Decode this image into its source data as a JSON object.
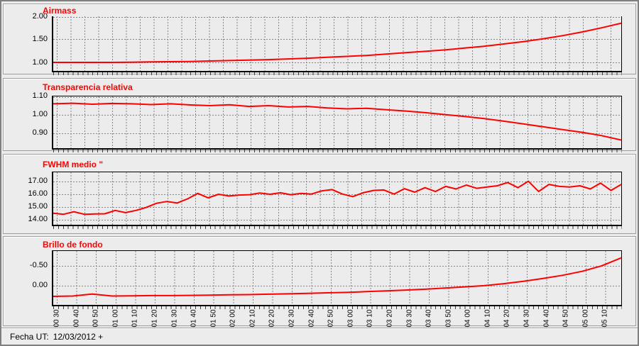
{
  "colors": {
    "accent_red": "#ff0000",
    "background": "#ececec",
    "grid": "#858585",
    "axis": "#000000"
  },
  "status_bar": {
    "label": "Fecha UT:",
    "value": "12/03/2012 +"
  },
  "x_axis": {
    "tick_labels": [
      "00 30",
      "00 40",
      "00 50",
      "01 00",
      "01 10",
      "01 20",
      "01 30",
      "01 40",
      "01 50",
      "02 00",
      "02 10",
      "02 20",
      "02 30",
      "02 40",
      "02 50",
      "03 00",
      "03 10",
      "03 20",
      "03 30",
      "03 40",
      "03 50",
      "04 00",
      "04 10",
      "04 20",
      "04 30",
      "04 40",
      "04 50",
      "05 00",
      "05 10"
    ],
    "orientation": "rotated-90"
  },
  "chart_data": [
    {
      "type": "line",
      "title": "Airmass",
      "line_color": "#ff0000",
      "ylim": [
        0.815,
        2.0
      ],
      "grid": true,
      "legend": false,
      "y_ticks": [
        {
          "v": 2.0,
          "label": "2.00"
        },
        {
          "v": 1.5,
          "label": "1.50"
        },
        {
          "v": 1.0,
          "label": "1.00"
        }
      ],
      "x_range_labels": [
        "00 30",
        "05 10"
      ],
      "values": [
        1.0,
        1.0,
        1.0,
        1.0,
        1.005,
        1.01,
        1.015,
        1.02,
        1.03,
        1.04,
        1.05,
        1.06,
        1.075,
        1.09,
        1.11,
        1.13,
        1.15,
        1.18,
        1.21,
        1.24,
        1.27,
        1.31,
        1.35,
        1.4,
        1.45,
        1.51,
        1.58,
        1.66,
        1.75,
        1.85
      ]
    },
    {
      "type": "line",
      "title": "Transparencia relativa",
      "line_color": "#ff0000",
      "ylim": [
        0.82,
        1.1
      ],
      "grid": true,
      "legend": false,
      "y_ticks": [
        {
          "v": 1.1,
          "label": "1.10"
        },
        {
          "v": 1.0,
          "label": "1.00"
        },
        {
          "v": 0.9,
          "label": "0.90"
        }
      ],
      "x_range_labels": [
        "00 30",
        "05 10"
      ],
      "values": [
        1.06,
        1.063,
        1.058,
        1.062,
        1.06,
        1.056,
        1.06,
        1.054,
        1.05,
        1.055,
        1.046,
        1.05,
        1.043,
        1.046,
        1.038,
        1.033,
        1.036,
        1.028,
        1.021,
        1.012,
        1.002,
        0.992,
        0.98,
        0.966,
        0.951,
        0.936,
        0.921,
        0.906,
        0.888,
        0.864
      ]
    },
    {
      "type": "line",
      "title": "FWHM medio \"",
      "line_color": "#ff0000",
      "ylim": [
        13.6,
        17.7
      ],
      "grid": true,
      "legend": false,
      "y_ticks": [
        {
          "v": 17.0,
          "label": "17.00"
        },
        {
          "v": 16.0,
          "label": "16.00"
        },
        {
          "v": 15.0,
          "label": "15.00"
        },
        {
          "v": 14.0,
          "label": "14.00"
        }
      ],
      "x_range_labels": [
        "00 30",
        "05 10"
      ],
      "values": [
        14.5,
        14.42,
        14.62,
        14.42,
        14.44,
        14.46,
        14.72,
        14.55,
        14.72,
        14.95,
        15.28,
        15.42,
        15.3,
        15.62,
        16.05,
        15.7,
        15.98,
        15.85,
        15.92,
        15.95,
        16.08,
        15.98,
        16.1,
        15.95,
        16.05,
        16.0,
        16.25,
        16.35,
        16.0,
        15.8,
        16.1,
        16.28,
        16.32,
        16.0,
        16.42,
        16.15,
        16.5,
        16.2,
        16.6,
        16.4,
        16.7,
        16.45,
        16.55,
        16.65,
        16.9,
        16.5,
        17.0,
        16.2,
        16.75,
        16.6,
        16.55,
        16.65,
        16.4,
        16.85,
        16.28,
        16.75
      ]
    },
    {
      "type": "line",
      "title": "Brillo de fondo",
      "line_color": "#ff0000",
      "ylim": [
        0.484,
        -0.873
      ],
      "grid": true,
      "legend": false,
      "y_axis_inverted": true,
      "y_ticks": [
        {
          "v": -0.5,
          "label": "-0.50"
        },
        {
          "v": 0.0,
          "label": "0.00"
        }
      ],
      "x_range_labels": [
        "00 30",
        "05 10"
      ],
      "values": [
        0.27,
        0.26,
        0.21,
        0.26,
        0.255,
        0.25,
        0.25,
        0.245,
        0.24,
        0.23,
        0.225,
        0.215,
        0.205,
        0.195,
        0.18,
        0.17,
        0.15,
        0.13,
        0.11,
        0.09,
        0.06,
        0.03,
        0.0,
        -0.05,
        -0.11,
        -0.18,
        -0.26,
        -0.36,
        -0.5,
        -0.7
      ]
    }
  ]
}
